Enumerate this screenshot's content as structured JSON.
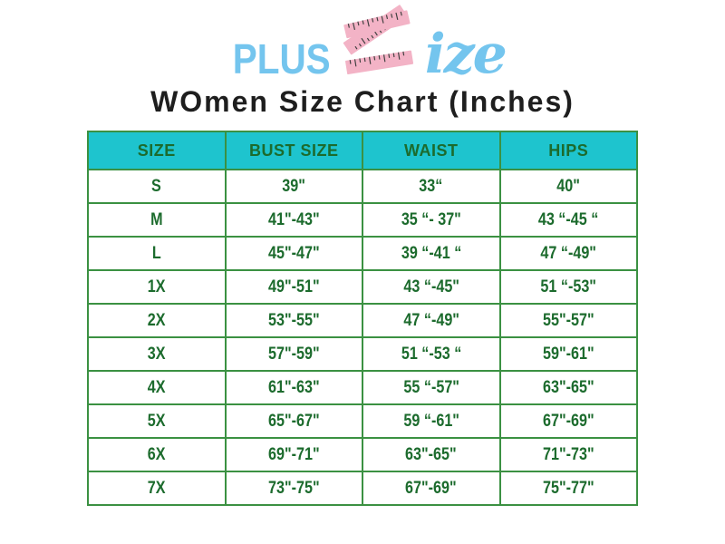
{
  "logo": {
    "plus": "PLUS",
    "ize": "ize",
    "tape_icon": "tape-measure-s-icon",
    "colors": {
      "blue": "#74C5EE",
      "pink": "#F3B3C6",
      "tick": "#3F3F3F"
    }
  },
  "title": "WOmen Size Chart (Inches)",
  "chart_data": {
    "type": "table",
    "title": "WOmen Size Chart (Inches)",
    "columns": [
      "SIZE",
      "BUST SIZE",
      "WAIST",
      "HIPS"
    ],
    "rows": [
      [
        "S",
        "39\"",
        "33“",
        "40\""
      ],
      [
        "M",
        "41\"-43\"",
        "35 “- 37\"",
        "43 “-45 “"
      ],
      [
        "L",
        "45\"-47\"",
        "39 “-41 “",
        "47 “-49\""
      ],
      [
        "1X",
        "49\"-51\"",
        "43 “-45\"",
        "51 “-53\""
      ],
      [
        "2X",
        "53\"-55\"",
        "47 “-49\"",
        "55\"-57\""
      ],
      [
        "3X",
        "57\"-59\"",
        "51 “-53 “",
        "59\"-61\""
      ],
      [
        "4X",
        "61\"-63\"",
        "55 “-57\"",
        "63\"-65\""
      ],
      [
        "5X",
        "65\"-67\"",
        "59 “-61\"",
        "67\"-69\""
      ],
      [
        "6X",
        "69\"-71\"",
        "63\"-65\"",
        "71\"-73\""
      ],
      [
        "7X",
        "73\"-75\"",
        "67\"-69\"",
        "75\"-77\""
      ]
    ],
    "units": "inches",
    "layout": {
      "grid": true,
      "header_row": true
    },
    "colors": {
      "header_bg": "#1EC4CE",
      "border": "#3B9142",
      "text": "#1C6B2D",
      "title": "#1E1E1E"
    }
  }
}
